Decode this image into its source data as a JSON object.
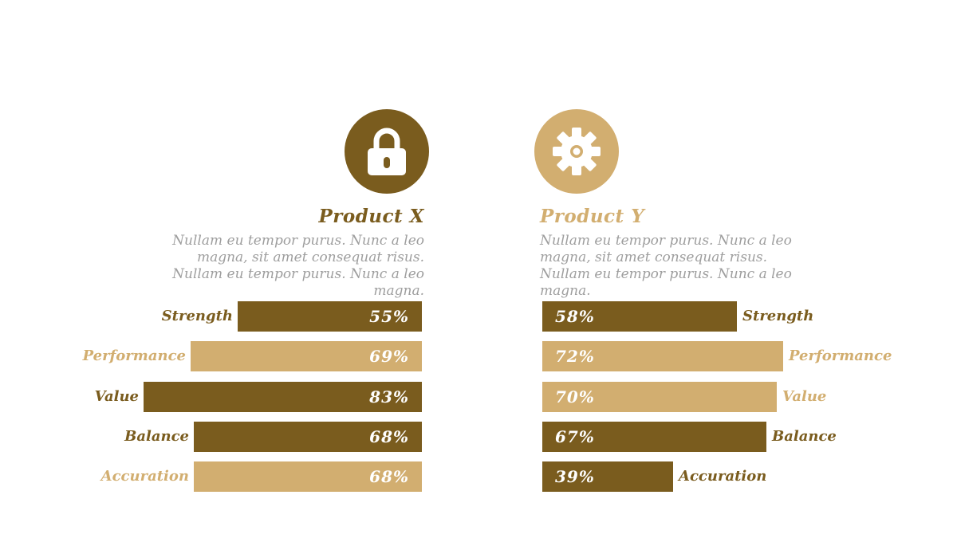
{
  "colors": {
    "dark": "#7a5c1e",
    "light": "#d2ae70",
    "desc": "#9e9e9e"
  },
  "chart_data": [
    {
      "type": "bar",
      "orientation": "horizontal",
      "title": "Product X",
      "subtitle": "Nullam eu tempor purus. Nunc a leo magna, sit amet consequat risus. Nullam eu tempor purus. Nunc a leo magna.",
      "icon": "lock-icon",
      "title_color": "#7a5c1e",
      "icon_color": "#7a5c1e",
      "bar_direction": "grows-left",
      "xlim": [
        0,
        100
      ],
      "categories": [
        "Strength",
        "Performance",
        "Value",
        "Balance",
        "Accuration"
      ],
      "values": [
        55,
        69,
        83,
        68,
        68
      ],
      "value_labels": [
        "55%",
        "69%",
        "83%",
        "68%",
        "68%"
      ],
      "bar_colors": [
        "#7a5c1e",
        "#d2ae70",
        "#7a5c1e",
        "#7a5c1e",
        "#d2ae70"
      ]
    },
    {
      "type": "bar",
      "orientation": "horizontal",
      "title": "Product Y",
      "subtitle": "Nullam eu tempor purus. Nunc a leo magna, sit amet consequat risus. Nullam eu tempor purus. Nunc a leo magna.",
      "icon": "gear-icon",
      "title_color": "#d2ae70",
      "icon_color": "#d2ae70",
      "bar_direction": "grows-right",
      "xlim": [
        0,
        100
      ],
      "categories": [
        "Strength",
        "Performance",
        "Value",
        "Balance",
        "Accuration"
      ],
      "values": [
        58,
        72,
        70,
        67,
        39
      ],
      "value_labels": [
        "58%",
        "72%",
        "70%",
        "67%",
        "39%"
      ],
      "bar_colors": [
        "#7a5c1e",
        "#d2ae70",
        "#d2ae70",
        "#7a5c1e",
        "#7a5c1e"
      ]
    }
  ]
}
